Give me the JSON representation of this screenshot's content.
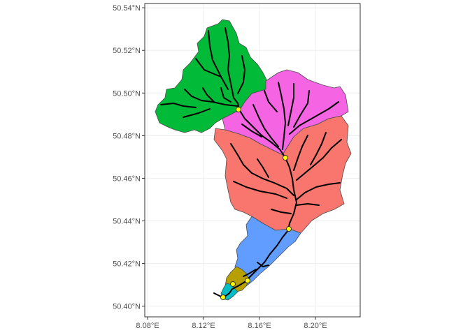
{
  "map": {
    "lat_ticks": [
      "50.40°N",
      "50.42°N",
      "50.44°N",
      "50.46°N",
      "50.48°N",
      "50.50°N",
      "50.52°N",
      "50.54°N"
    ],
    "lon_ticks": [
      "8.08°E",
      "8.12°E",
      "8.16°E",
      "8.20°E"
    ],
    "lat_values": [
      50.4,
      50.42,
      50.44,
      50.46,
      50.48,
      50.5,
      50.52,
      50.54
    ],
    "lon_values": [
      8.08,
      8.12,
      8.16,
      8.2
    ],
    "xlim": [
      8.078,
      8.232
    ],
    "ylim": [
      50.395,
      50.542
    ],
    "colors": {
      "basin_green": "#00BA38",
      "basin_magenta": "#F564E3",
      "basin_salmon": "#F8766D",
      "basin_blue": "#619CFF",
      "basin_olive": "#B79F00",
      "basin_cyan": "#00BFC4",
      "river": "#000000",
      "gauge": "#FFFF00",
      "grid": "#EBEBEB",
      "panel_border": "#333333"
    }
  }
}
